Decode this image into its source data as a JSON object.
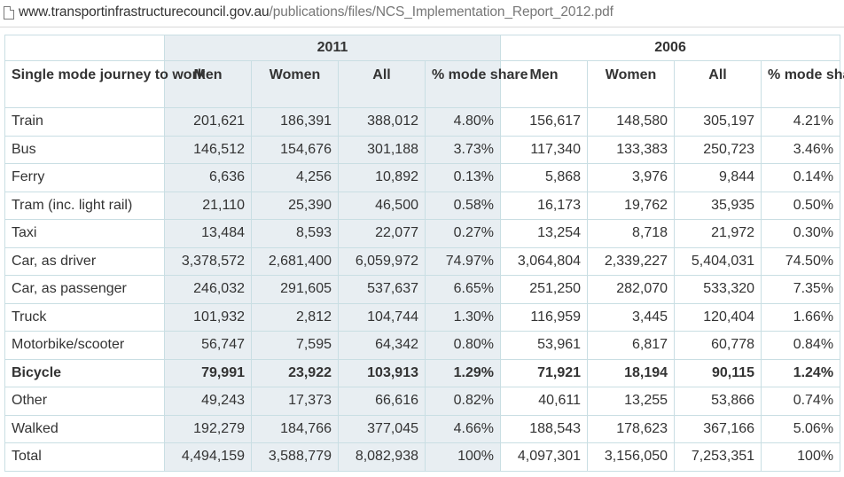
{
  "browser": {
    "url_domain": "www.transportinfrastructurecouncil.gov.au",
    "url_path": "/publications/files/NCS_Implementation_Report_2012.pdf"
  },
  "table": {
    "year_headers": [
      "2011",
      "2006"
    ],
    "row_header": "Single mode journey to work",
    "columns": [
      "Men",
      "Women",
      "All",
      "% mode share",
      "Men",
      "Women",
      "All",
      "% mode share"
    ],
    "rows": [
      {
        "label": "Train",
        "cells": [
          "201,621",
          "186,391",
          "388,012",
          "4.80%",
          "156,617",
          "148,580",
          "305,197",
          "4.21%"
        ]
      },
      {
        "label": "Bus",
        "cells": [
          "146,512",
          "154,676",
          "301,188",
          "3.73%",
          "117,340",
          "133,383",
          "250,723",
          "3.46%"
        ]
      },
      {
        "label": "Ferry",
        "cells": [
          "6,636",
          "4,256",
          "10,892",
          "0.13%",
          "5,868",
          "3,976",
          "9,844",
          "0.14%"
        ]
      },
      {
        "label": "Tram (inc. light rail)",
        "cells": [
          "21,110",
          "25,390",
          "46,500",
          "0.58%",
          "16,173",
          "19,762",
          "35,935",
          "0.50%"
        ]
      },
      {
        "label": "Taxi",
        "cells": [
          "13,484",
          "8,593",
          "22,077",
          "0.27%",
          "13,254",
          "8,718",
          "21,972",
          "0.30%"
        ]
      },
      {
        "label": "Car, as driver",
        "cells": [
          "3,378,572",
          "2,681,400",
          "6,059,972",
          "74.97%",
          "3,064,804",
          "2,339,227",
          "5,404,031",
          "74.50%"
        ]
      },
      {
        "label": "Car, as passenger",
        "cells": [
          "246,032",
          "291,605",
          "537,637",
          "6.65%",
          "251,250",
          "282,070",
          "533,320",
          "7.35%"
        ]
      },
      {
        "label": "Truck",
        "cells": [
          "101,932",
          "2,812",
          "104,744",
          "1.30%",
          "116,959",
          "3,445",
          "120,404",
          "1.66%"
        ]
      },
      {
        "label": "Motorbike/scooter",
        "cells": [
          "56,747",
          "7,595",
          "64,342",
          "0.80%",
          "53,961",
          "6,817",
          "60,778",
          "0.84%"
        ]
      },
      {
        "label": "Bicycle",
        "cells": [
          "79,991",
          "23,922",
          "103,913",
          "1.29%",
          "71,921",
          "18,194",
          "90,115",
          "1.24%"
        ],
        "bold": true
      },
      {
        "label": "Other",
        "cells": [
          "49,243",
          "17,373",
          "66,616",
          "0.82%",
          "40,611",
          "13,255",
          "53,866",
          "0.74%"
        ]
      },
      {
        "label": "Walked",
        "cells": [
          "192,279",
          "184,766",
          "377,045",
          "4.66%",
          "188,543",
          "178,623",
          "367,166",
          "5.06%"
        ]
      },
      {
        "label": "Total",
        "cells": [
          "4,494,159",
          "3,588,779",
          "8,082,938",
          "100%",
          "4,097,301",
          "3,156,050",
          "7,253,351",
          "100%"
        ]
      }
    ]
  }
}
